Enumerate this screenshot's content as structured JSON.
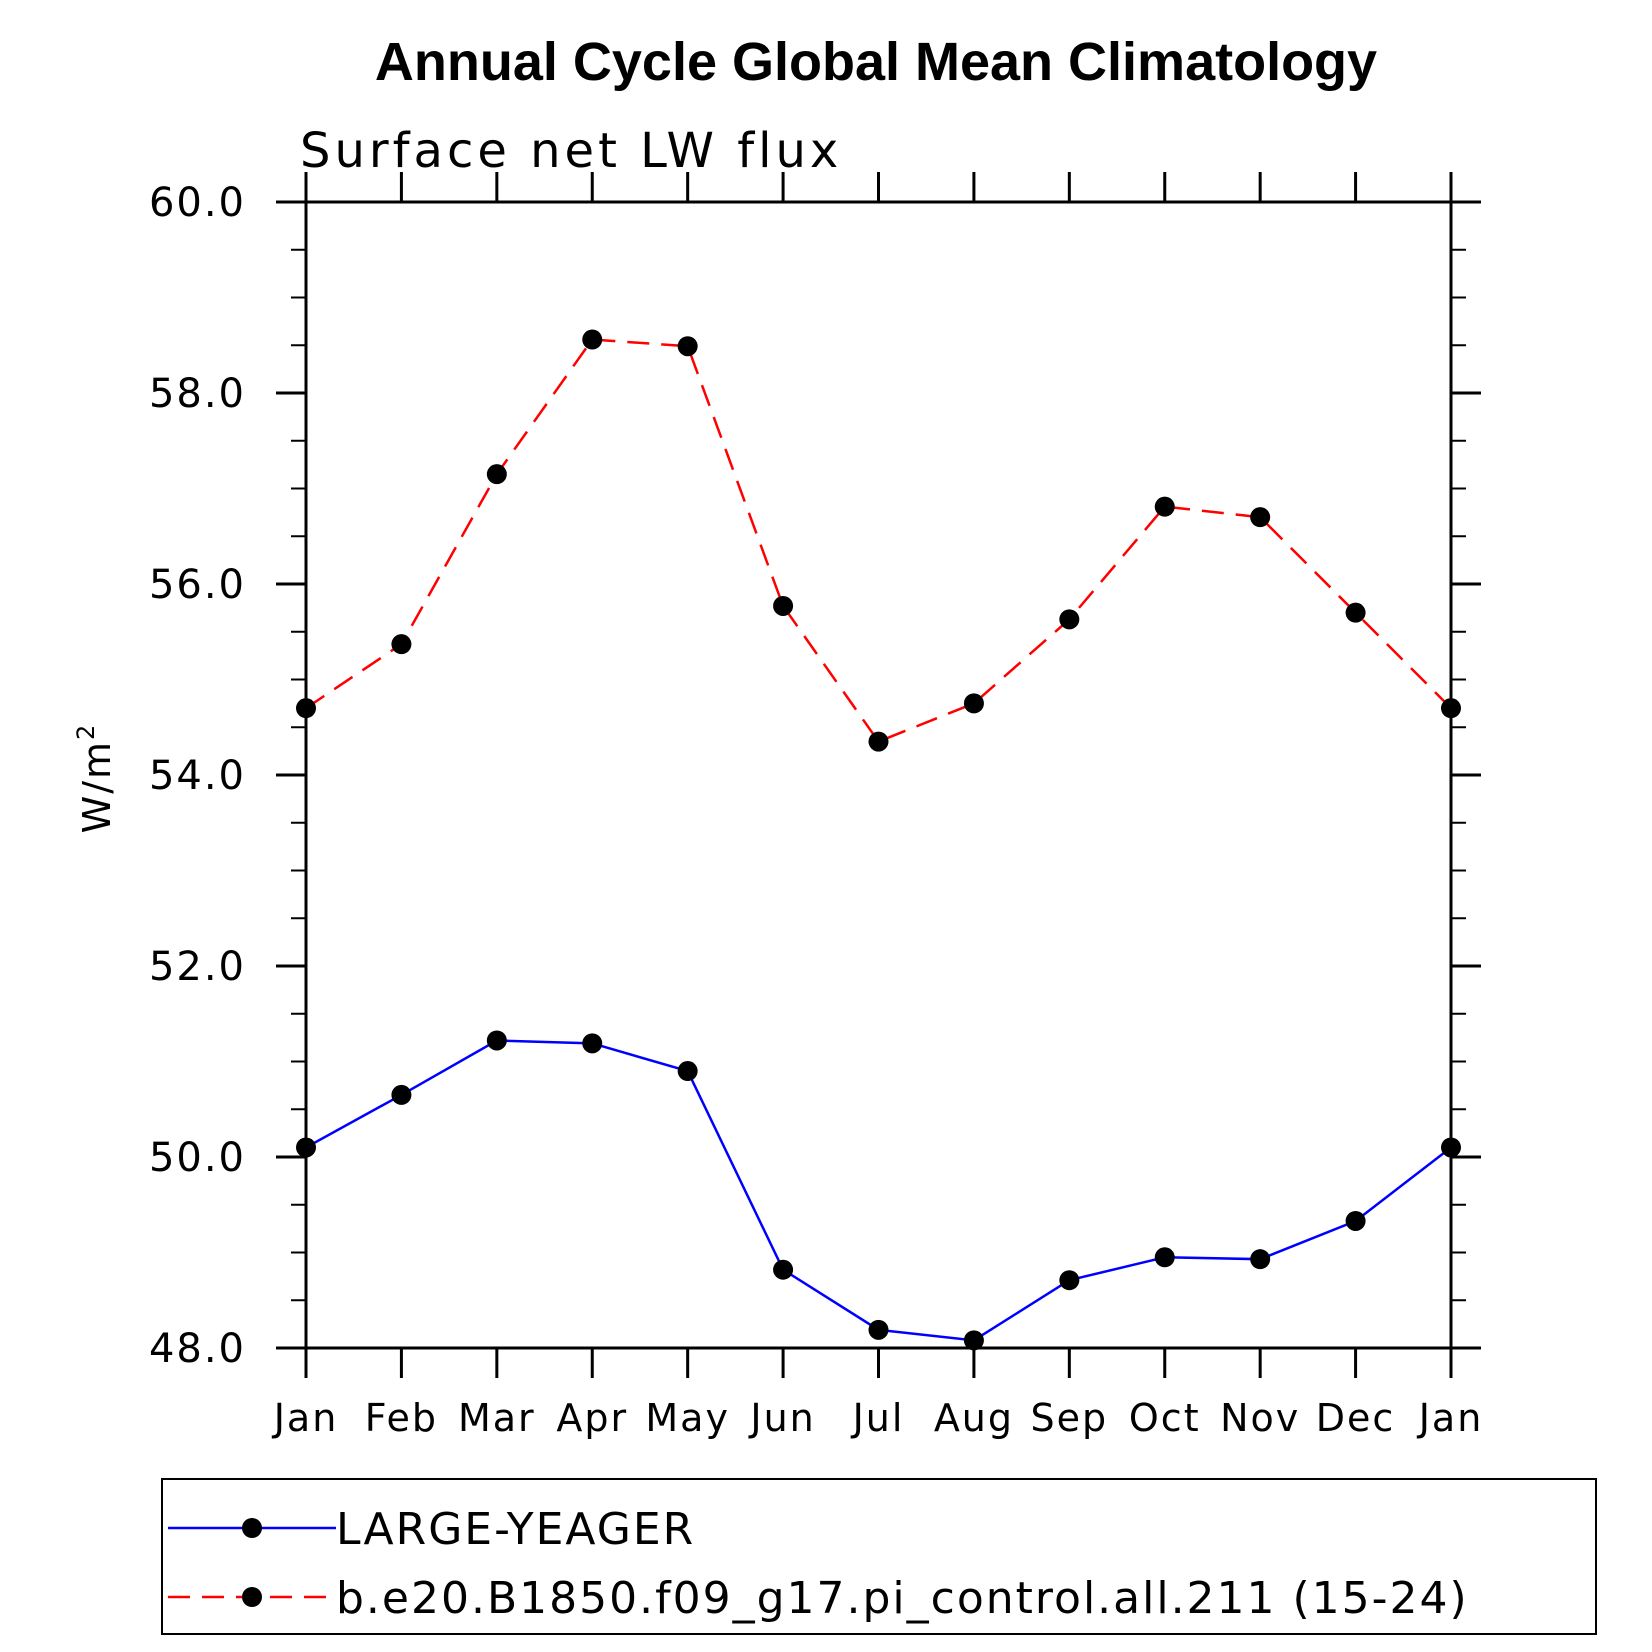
{
  "chart_data": {
    "type": "line",
    "title": "Annual Cycle Global Mean Climatology",
    "subtitle": "Surface net LW flux",
    "ylabel": "W/m",
    "ylabel_superscript": "2",
    "xlabel": "",
    "ylim": [
      48.0,
      60.0
    ],
    "yticks": [
      48.0,
      50.0,
      52.0,
      54.0,
      56.0,
      58.0,
      60.0
    ],
    "ytick_labels": [
      "48.0",
      "50.0",
      "52.0",
      "54.0",
      "56.0",
      "58.0",
      "60.0"
    ],
    "categories": [
      "Jan",
      "Feb",
      "Mar",
      "Apr",
      "May",
      "Jun",
      "Jul",
      "Aug",
      "Sep",
      "Oct",
      "Nov",
      "Dec",
      "Jan"
    ],
    "grid": false,
    "legend_position": "bottom",
    "series": [
      {
        "name": "LARGE-YEAGER",
        "color": "#0000ff",
        "line_style": "solid",
        "marker": "filled-circle",
        "values": [
          50.1,
          50.65,
          51.22,
          51.19,
          50.9,
          48.82,
          48.19,
          48.08,
          48.71,
          48.95,
          48.93,
          49.33,
          50.1
        ]
      },
      {
        "name": "b.e20.B1850.f09_g17.pi_control.all.211 (15-24)",
        "color": "#ff0000",
        "line_style": "dashed",
        "marker": "filled-circle",
        "values": [
          54.7,
          55.37,
          57.15,
          58.56,
          58.49,
          55.77,
          54.35,
          54.75,
          55.63,
          56.81,
          56.7,
          55.7,
          54.7
        ]
      }
    ]
  }
}
